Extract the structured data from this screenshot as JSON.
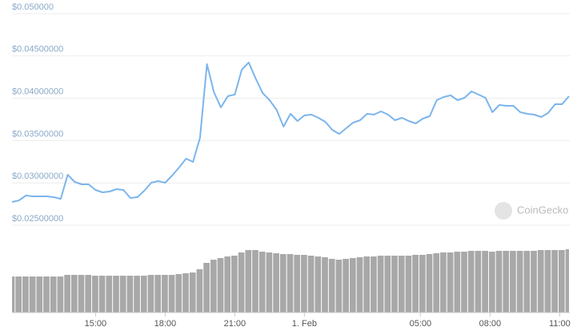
{
  "chart_data": {
    "type": "line",
    "color": "#7cb5ec",
    "x": [
      11.4,
      11.7,
      12,
      12.3,
      12.6,
      12.9,
      13.2,
      13.5,
      13.8,
      14.1,
      14.4,
      14.7,
      15,
      15.3,
      15.6,
      15.9,
      16.2,
      16.5,
      16.8,
      17.1,
      17.4,
      17.7,
      18,
      18.3,
      18.6,
      18.9,
      19.2,
      19.5,
      19.8,
      20.1,
      20.4,
      20.7,
      21,
      21.3,
      21.6,
      21.9,
      22.2,
      22.5,
      22.8,
      23.1,
      23.4,
      23.7,
      24,
      24.3,
      24.6,
      24.9,
      25.2,
      25.5,
      25.8,
      26.1,
      26.4,
      26.7,
      27,
      27.3,
      27.6,
      27.9,
      28.2,
      28.5,
      28.8,
      29.1,
      29.4,
      29.7,
      30,
      30.3,
      30.6,
      30.9,
      31.2,
      31.5,
      31.8,
      32.1,
      32.4,
      32.7,
      33,
      33.3,
      33.6,
      33.9,
      34.2,
      34.5,
      34.8,
      35.1,
      35.4
    ],
    "values": [
      0.02775,
      0.02793,
      0.0285,
      0.02841,
      0.02841,
      0.02841,
      0.02831,
      0.02812,
      0.03097,
      0.03011,
      0.02983,
      0.02983,
      0.02917,
      0.02888,
      0.02898,
      0.02926,
      0.02917,
      0.02822,
      0.02831,
      0.02907,
      0.03002,
      0.03021,
      0.03002,
      0.03087,
      0.03182,
      0.03286,
      0.03248,
      0.03532,
      0.04403,
      0.04072,
      0.03892,
      0.04025,
      0.04044,
      0.04337,
      0.04422,
      0.04233,
      0.04062,
      0.03977,
      0.03864,
      0.03665,
      0.03816,
      0.03731,
      0.03797,
      0.03807,
      0.03769,
      0.03722,
      0.03627,
      0.03579,
      0.03646,
      0.03712,
      0.03741,
      0.03816,
      0.03807,
      0.03845,
      0.03807,
      0.03741,
      0.03769,
      0.03731,
      0.03703,
      0.03759,
      0.03788,
      0.03977,
      0.04015,
      0.04034,
      0.03977,
      0.04006,
      0.04081,
      0.04044,
      0.04006,
      0.03835,
      0.0392,
      0.03911,
      0.03911,
      0.03835,
      0.03816,
      0.03807,
      0.03778,
      0.03826,
      0.0393,
      0.0393,
      0.04025
    ],
    "xlim": [
      11.4,
      35.4
    ],
    "xticks": [
      {
        "value": 15,
        "label": "15:00"
      },
      {
        "value": 18,
        "label": "18:00"
      },
      {
        "value": 21,
        "label": "21:00"
      },
      {
        "value": 24,
        "label": "1. Feb"
      },
      {
        "value": 29,
        "label": "05:00"
      },
      {
        "value": 32,
        "label": "08:00"
      },
      {
        "value": 35,
        "label": "11:00"
      }
    ],
    "ylim": [
      0.025,
      0.05
    ],
    "yticks": [
      {
        "value": 0.05,
        "label": "$0.050000"
      },
      {
        "value": 0.045,
        "label": "$0.04500000"
      },
      {
        "value": 0.04,
        "label": "$0.04000000"
      },
      {
        "value": 0.035,
        "label": "$0.03500000"
      },
      {
        "value": 0.03,
        "label": "$0.03000000"
      },
      {
        "value": 0.025,
        "label": "$0.02500000"
      }
    ],
    "grid": true,
    "volume": {
      "type": "bar",
      "color": "#a8a8a8",
      "ylim": [
        0,
        90
      ],
      "values": [
        45,
        45,
        45,
        45,
        45,
        45,
        45,
        45,
        47,
        47,
        47,
        47,
        46,
        46,
        46,
        46,
        46,
        46,
        46,
        46,
        47,
        47,
        47,
        47,
        48,
        49,
        50,
        54,
        62,
        66,
        68,
        70,
        71,
        75,
        78,
        78,
        76,
        75,
        74,
        73,
        73,
        72,
        72,
        71,
        70,
        69,
        67,
        66,
        67,
        68,
        69,
        70,
        70,
        71,
        71,
        71,
        71,
        71,
        72,
        72,
        73,
        74,
        75,
        75,
        76,
        76,
        77,
        77,
        77,
        76,
        77,
        77,
        77,
        77,
        77,
        77,
        78,
        78,
        78,
        78,
        79
      ]
    },
    "watermark": "CoinGecko"
  }
}
